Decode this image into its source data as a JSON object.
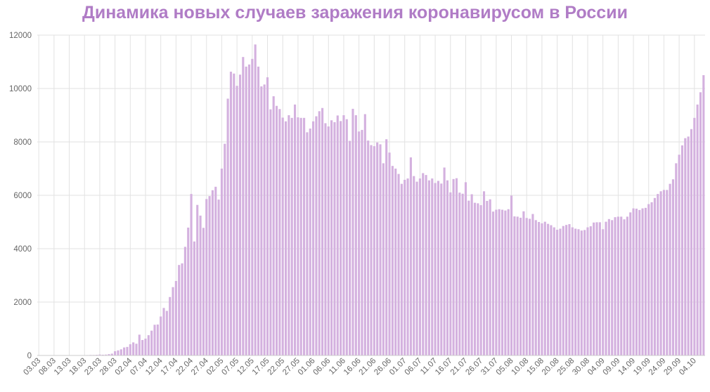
{
  "chart_data": {
    "type": "bar",
    "title": "Динамика новых случаев заражения коронавирусом в России",
    "xlabel": "",
    "ylabel": "",
    "ylim": [
      0,
      12000
    ],
    "y_ticks": [
      "0",
      "2000",
      "4000",
      "6000",
      "8000",
      "10000",
      "12000"
    ],
    "grid": true,
    "bar_color": "#d4b1df",
    "title_color": "#b07cc6",
    "x_tick_labels": [
      "03.03",
      "08.03",
      "13.03",
      "18.03",
      "23.03",
      "28.03",
      "02.04",
      "07.04",
      "12.04",
      "17.04",
      "22.04",
      "27.04",
      "02.05",
      "07.05",
      "12.05",
      "17.05",
      "22.05",
      "27.05",
      "01.06",
      "06.06",
      "11.06",
      "16.06",
      "21.06",
      "26.06",
      "01.07",
      "06.07",
      "11.07",
      "16.07",
      "21.07",
      "26.07",
      "31.07",
      "05.08",
      "10.08",
      "15.08",
      "20.08",
      "25.08",
      "30.08",
      "04.09",
      "09.09",
      "14.09",
      "19.09",
      "24.09",
      "29.09",
      "04.10"
    ],
    "start_date": "03.03",
    "values": [
      1,
      0,
      0,
      0,
      1,
      0,
      0,
      0,
      0,
      1,
      1,
      3,
      2,
      3,
      8,
      4,
      15,
      20,
      19,
      25,
      35,
      28,
      33,
      50,
      68,
      160,
      190,
      230,
      300,
      320,
      420,
      490,
      440,
      780,
      580,
      630,
      760,
      930,
      1150,
      1160,
      1460,
      1780,
      1670,
      2190,
      2560,
      2790,
      3390,
      3450,
      4070,
      4790,
      6050,
      4270,
      5640,
      5240,
      4780,
      5860,
      5970,
      6190,
      6320,
      5840,
      7000,
      7930,
      9620,
      10630,
      10560,
      10100,
      10520,
      11180,
      10820,
      10900,
      11110,
      11650,
      10820,
      10080,
      10150,
      10420,
      9220,
      9710,
      9350,
      9230,
      8910,
      8770,
      9000,
      8900,
      9400,
      8920,
      8900,
      8900,
      8360,
      8500,
      8770,
      8960,
      9150,
      9270,
      8700,
      8580,
      8810,
      8740,
      8990,
      8780,
      9000,
      8850,
      8040,
      9240,
      9000,
      8390,
      8450,
      9040,
      8050,
      7880,
      7840,
      7980,
      7910,
      7200,
      8100,
      7600,
      7100,
      7000,
      6800,
      6430,
      6580,
      6630,
      7420,
      6720,
      6510,
      6630,
      6830,
      6760,
      6560,
      6630,
      6460,
      6540,
      6440,
      7040,
      6560,
      6110,
      6610,
      6640,
      6100,
      6060,
      6490,
      5800,
      6040,
      5720,
      5700,
      5630,
      6150,
      5790,
      5850,
      5390,
      5460,
      5480,
      5460,
      5430,
      5480,
      5990,
      5210,
      5200,
      5160,
      5400,
      5150,
      5120,
      5300,
      5070,
      5000,
      4950,
      5010,
      4930,
      4880,
      4800,
      4710,
      4750,
      4850,
      4890,
      4920,
      4800,
      4750,
      4730,
      4680,
      4700,
      4800,
      4840,
      4980,
      4990,
      4990,
      4730,
      5010,
      5110,
      5070,
      5180,
      5200,
      5200,
      5100,
      5200,
      5360,
      5510,
      5500,
      5450,
      5510,
      5530,
      5670,
      5740,
      5900,
      6050,
      6150,
      6200,
      6200,
      6430,
      6600,
      7200,
      7520,
      7870,
      8140,
      8200,
      8480,
      8900,
      9400,
      9860,
      10500
    ]
  }
}
